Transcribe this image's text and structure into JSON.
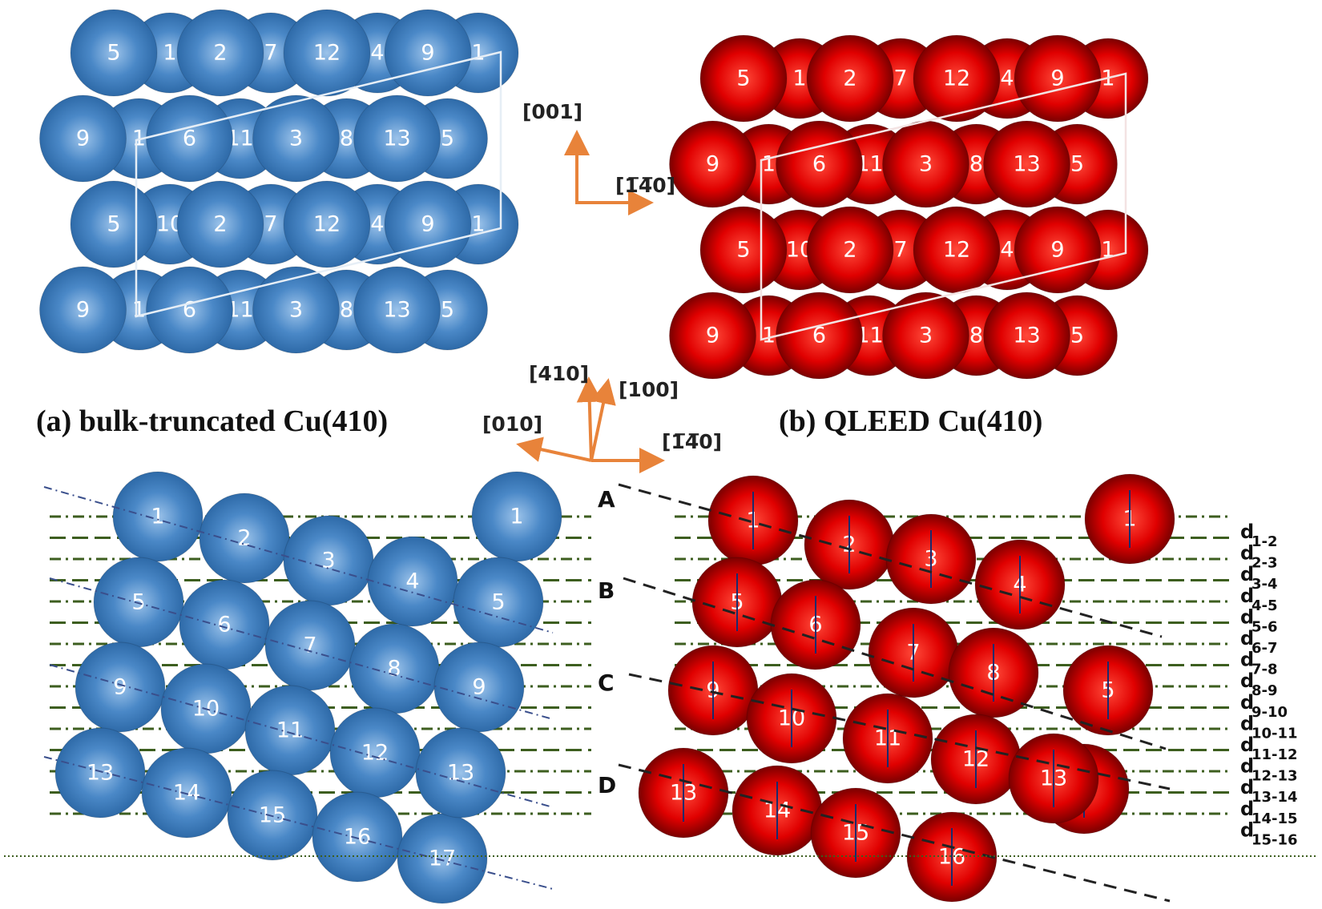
{
  "captions": {
    "bulk": "(a) bulk-truncated Cu(410)",
    "qleed": "(b) QLEED Cu(410)"
  },
  "axes_top": {
    "vertical": "[001]",
    "horizontal": "[1̅4̅0]"
  },
  "axes_mid": {
    "a410": "[410]",
    "a100": "[100]",
    "a010": "[010]",
    "a140": "[1̅4̅0]"
  },
  "row_labels": [
    "A",
    "B",
    "C",
    "D"
  ],
  "spacing_labels": [
    {
      "main": "d",
      "sub": "1-2"
    },
    {
      "main": "d",
      "sub": "2-3"
    },
    {
      "main": "d",
      "sub": "3-4"
    },
    {
      "main": "d",
      "sub": "4-5"
    },
    {
      "main": "d",
      "sub": "5-6"
    },
    {
      "main": "d",
      "sub": "6-7"
    },
    {
      "main": "d",
      "sub": "7-8"
    },
    {
      "main": "d",
      "sub": "8-9"
    },
    {
      "main": "d",
      "sub": "9-10"
    },
    {
      "main": "d",
      "sub": "10-11"
    },
    {
      "main": "d",
      "sub": "11-12"
    },
    {
      "main": "d",
      "sub": "12-13"
    },
    {
      "main": "d",
      "sub": "13-14"
    },
    {
      "main": "d",
      "sub": "14-15"
    },
    {
      "main": "d",
      "sub": "15-16"
    }
  ],
  "top_rows": [
    [
      "5",
      "1",
      "2",
      "7",
      "12",
      "4",
      "9",
      "1"
    ],
    [
      "9",
      "1",
      "6",
      "11",
      "3",
      "8",
      "13",
      "5"
    ],
    [
      "5",
      "10",
      "2",
      "7",
      "12",
      "4",
      "9",
      "1"
    ],
    [
      "9",
      "1",
      "6",
      "11",
      "3",
      "8",
      "13",
      "5"
    ]
  ],
  "side_bulk_atoms": [
    "1",
    "2",
    "3",
    "4",
    "1",
    "5",
    "6",
    "7",
    "8",
    "5",
    "9",
    "10",
    "11",
    "12",
    "9",
    "13",
    "14",
    "15",
    "16",
    "17",
    "13"
  ],
  "side_qleed_atoms": [
    "1",
    "2",
    "3",
    "4",
    "1",
    "5",
    "6",
    "7",
    "8",
    "5",
    "9",
    "10",
    "11",
    "12",
    "9",
    "13",
    "14",
    "15",
    "16",
    "13"
  ],
  "colors": {
    "blue_atom": "#3f7fbf",
    "red_atom": "#d40000",
    "axis_arrow": "#e8833a",
    "terrace_line": "#3d5e1f",
    "step_line": "#333333"
  }
}
